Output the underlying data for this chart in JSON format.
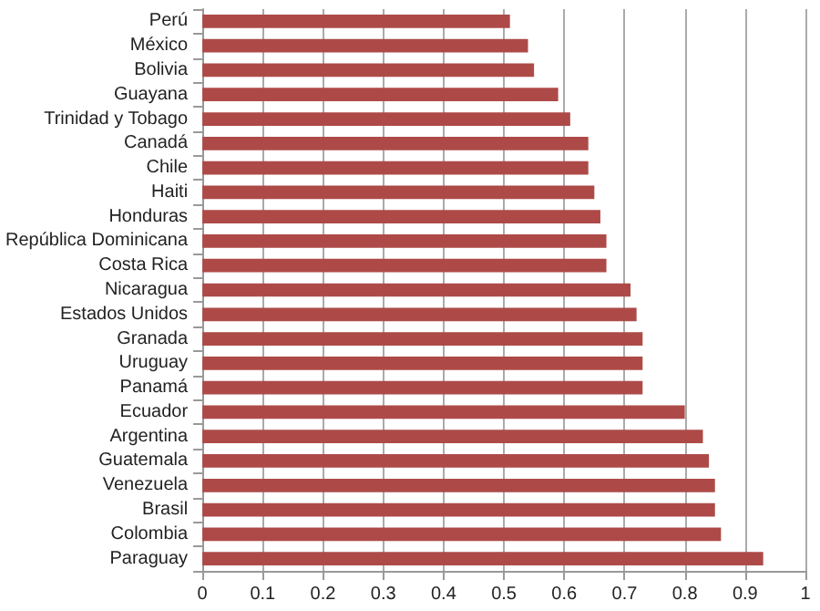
{
  "chart_data": {
    "type": "bar",
    "orientation": "horizontal",
    "categories": [
      "Perú",
      "México",
      "Bolivia",
      "Guayana",
      "Trinidad y Tobago",
      "Canadá",
      "Chile",
      "Haiti",
      "Honduras",
      "República Dominicana",
      "Costa Rica",
      "Nicaragua",
      "Estados Unidos",
      "Granada",
      "Uruguay",
      "Panamá",
      "Ecuador",
      "Argentina",
      "Guatemala",
      "Venezuela",
      "Brasil",
      "Colombia",
      "Paraguay"
    ],
    "values": [
      0.51,
      0.54,
      0.55,
      0.59,
      0.61,
      0.64,
      0.64,
      0.65,
      0.66,
      0.67,
      0.67,
      0.71,
      0.72,
      0.73,
      0.73,
      0.73,
      0.8,
      0.83,
      0.84,
      0.85,
      0.85,
      0.86,
      0.93
    ],
    "color": "#ad4a48",
    "xlim": [
      0,
      1
    ],
    "xticks": [
      0,
      0.1,
      0.2,
      0.3,
      0.4,
      0.5,
      0.6,
      0.7,
      0.8,
      0.9,
      1
    ],
    "grid": "x"
  }
}
